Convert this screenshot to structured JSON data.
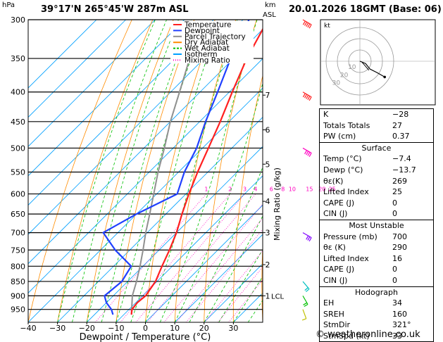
{
  "header": {
    "hpa_label": "hPa",
    "location": "39°17'N  265°45'W  287m  ASL",
    "km_label": "km",
    "asl_label": "ASL",
    "datetime": "20.01.2026  18GMT  (Base: 06)"
  },
  "chart_data": {
    "type": "skew-t",
    "xlabel": "Dewpoint / Temperature (°C)",
    "ylabel_left": "hPa",
    "mixing_ratio_axis_label": "Mixing Ratio (g/kg)",
    "x_ticks": [
      -40,
      -30,
      -20,
      -10,
      0,
      10,
      20,
      30
    ],
    "x_tick_labels": [
      "−40",
      "−30",
      "−20",
      "−10",
      "0",
      "10",
      "20",
      "30"
    ],
    "pressure_levels": [
      300,
      350,
      400,
      450,
      500,
      550,
      600,
      650,
      700,
      750,
      800,
      850,
      900,
      950
    ],
    "pressure_range": [
      300,
      1000
    ],
    "temp_range_at_bottom": [
      -40,
      40
    ],
    "km_ticks": [
      {
        "label": "1",
        "p": 900
      },
      {
        "label": "2",
        "p": 795
      },
      {
        "label": "3",
        "p": 700
      },
      {
        "label": "4",
        "p": 618
      },
      {
        "label": "5",
        "p": 533
      },
      {
        "label": "6",
        "p": 465
      },
      {
        "label": "7",
        "p": 405
      }
    ],
    "lcl": {
      "label": "LCL",
      "p": 900
    },
    "mixing_ratio_values": [
      1,
      2,
      3,
      4,
      6,
      8,
      10,
      15,
      20,
      25
    ],
    "legend": [
      {
        "label": "Temperature",
        "color": "#ff2020",
        "style": "solid"
      },
      {
        "label": "Dewpoint",
        "color": "#2040ff",
        "style": "solid"
      },
      {
        "label": "Parcel Trajectory",
        "color": "#909090",
        "style": "solid"
      },
      {
        "label": "Dry Adiabat",
        "color": "#ff8c00",
        "style": "solid"
      },
      {
        "label": "Wet Adiabat",
        "color": "#00c000",
        "style": "dashed"
      },
      {
        "label": "Isotherm",
        "color": "#00a0ff",
        "style": "solid"
      },
      {
        "label": "Mixing Ratio",
        "color": "#ff00c0",
        "style": "dotted"
      }
    ],
    "temperature": [
      {
        "p": 970,
        "t": -7.4
      },
      {
        "p": 950,
        "t": -9.0
      },
      {
        "p": 925,
        "t": -9.5
      },
      {
        "p": 900,
        "t": -9.0
      },
      {
        "p": 850,
        "t": -10.5
      },
      {
        "p": 800,
        "t": -13.5
      },
      {
        "p": 750,
        "t": -16.5
      },
      {
        "p": 700,
        "t": -20.0
      },
      {
        "p": 650,
        "t": -24.5
      },
      {
        "p": 600,
        "t": -29.0
      },
      {
        "p": 550,
        "t": -33.5
      },
      {
        "p": 500,
        "t": -38.0
      },
      {
        "p": 450,
        "t": -43.0
      },
      {
        "p": 400,
        "t": -49.0
      },
      {
        "p": 350,
        "t": -55.5
      },
      {
        "p": 300,
        "t": -61.5
      }
    ],
    "dewpoint": [
      {
        "p": 970,
        "t": -13.7
      },
      {
        "p": 950,
        "t": -16.0
      },
      {
        "p": 925,
        "t": -20.0
      },
      {
        "p": 900,
        "t": -23.0
      },
      {
        "p": 850,
        "t": -22.0
      },
      {
        "p": 800,
        "t": -24.0
      },
      {
        "p": 750,
        "t": -35.0
      },
      {
        "p": 700,
        "t": -45.0
      },
      {
        "p": 650,
        "t": -40.0
      },
      {
        "p": 600,
        "t": -33.0
      },
      {
        "p": 550,
        "t": -38.0
      },
      {
        "p": 500,
        "t": -42.0
      },
      {
        "p": 450,
        "t": -48.0
      },
      {
        "p": 400,
        "t": -54.0
      },
      {
        "p": 350,
        "t": -61.0
      },
      {
        "p": 300,
        "t": -68.0
      }
    ],
    "parcel": [
      {
        "p": 970,
        "t": -7.4
      },
      {
        "p": 900,
        "t": -13.5
      },
      {
        "p": 850,
        "t": -17.0
      },
      {
        "p": 800,
        "t": -21.0
      },
      {
        "p": 750,
        "t": -25.5
      },
      {
        "p": 700,
        "t": -30.5
      },
      {
        "p": 650,
        "t": -35.5
      },
      {
        "p": 600,
        "t": -41.0
      },
      {
        "p": 550,
        "t": -47.0
      },
      {
        "p": 500,
        "t": -53.0
      },
      {
        "p": 450,
        "t": -60.0
      },
      {
        "p": 400,
        "t": -67.0
      },
      {
        "p": 350,
        "t": -75.0
      }
    ],
    "wind_barbs": [
      {
        "p": 300,
        "dir": 300,
        "spd": 60,
        "color": "#ff2020"
      },
      {
        "p": 400,
        "dir": 300,
        "spd": 45,
        "color": "#ff2020"
      },
      {
        "p": 500,
        "dir": 300,
        "spd": 35,
        "color": "#ff00c0"
      },
      {
        "p": 700,
        "dir": 300,
        "spd": 25,
        "color": "#8000ff"
      },
      {
        "p": 850,
        "dir": 320,
        "spd": 20,
        "color": "#00c0c0"
      },
      {
        "p": 900,
        "dir": 330,
        "spd": 15,
        "color": "#00c000"
      },
      {
        "p": 950,
        "dir": 340,
        "spd": 10,
        "color": "#c0c000"
      }
    ],
    "hodograph": {
      "label": "kt",
      "ring_labels": [
        "10",
        "20",
        "30"
      ],
      "points_kt": [
        [
          0,
          0
        ],
        [
          5,
          -2
        ],
        [
          9,
          -7
        ],
        [
          15,
          -10
        ],
        [
          22,
          -14
        ]
      ],
      "arrow_points_kt": [
        [
          2,
          -1
        ],
        [
          8,
          -8
        ]
      ]
    }
  },
  "indices": {
    "top": [
      {
        "label": "K",
        "value": "−28"
      },
      {
        "label": "Totals Totals",
        "value": "27"
      },
      {
        "label": "PW (cm)",
        "value": "0.37"
      }
    ],
    "surface": {
      "title": "Surface",
      "rows": [
        {
          "label": "Temp (°C)",
          "value": "−7.4"
        },
        {
          "label": "Dewp (°C)",
          "value": "−13.7"
        },
        {
          "label": "θε(K)",
          "value": "269"
        },
        {
          "label": "Lifted Index",
          "value": "25"
        },
        {
          "label": "CAPE (J)",
          "value": "0"
        },
        {
          "label": "CIN (J)",
          "value": "0"
        }
      ]
    },
    "most_unstable": {
      "title": "Most Unstable",
      "rows": [
        {
          "label": "Pressure (mb)",
          "value": "700"
        },
        {
          "label": "θε (K)",
          "value": "290"
        },
        {
          "label": "Lifted Index",
          "value": "16"
        },
        {
          "label": "CAPE (J)",
          "value": "0"
        },
        {
          "label": "CIN (J)",
          "value": "0"
        }
      ]
    },
    "hodograph": {
      "title": "Hodograph",
      "rows": [
        {
          "label": "EH",
          "value": "34"
        },
        {
          "label": "SREH",
          "value": "160"
        },
        {
          "label": "StmDir",
          "value": "321°"
        },
        {
          "label": "StmSpd (kt)",
          "value": "33"
        }
      ]
    }
  },
  "copyright": "© weatheronline.co.uk"
}
